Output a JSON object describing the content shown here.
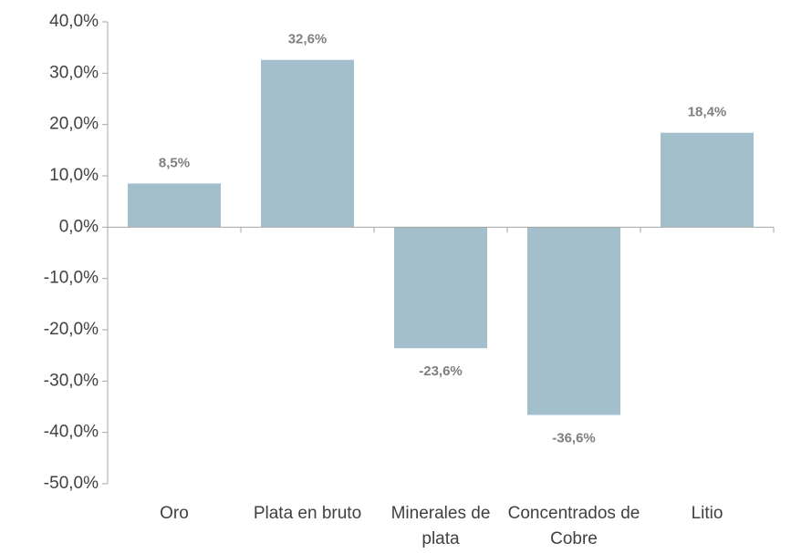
{
  "chart_data": {
    "type": "bar",
    "categories": [
      "Oro",
      "Plata en bruto",
      "Minerales de plata",
      "Concentrados de Cobre",
      "Litio"
    ],
    "values": [
      8.5,
      32.6,
      -23.6,
      -36.6,
      18.4
    ],
    "value_labels": [
      "8,5%",
      "32,6%",
      "-23,6%",
      "-36,6%",
      "18,4%"
    ],
    "color": "#a3bfcc",
    "ylim": [
      -50,
      40
    ],
    "yticks": [
      {
        "value": -50,
        "label": "-50,0%"
      },
      {
        "value": -40,
        "label": "-40,0%"
      },
      {
        "value": -30,
        "label": "-30,0%"
      },
      {
        "value": -20,
        "label": "-20,0%"
      },
      {
        "value": -10,
        "label": "-10,0%"
      },
      {
        "value": 0,
        "label": "0,0%"
      },
      {
        "value": 10,
        "label": "10,0%"
      },
      {
        "value": 20,
        "label": "20,0%"
      },
      {
        "value": 30,
        "label": "30,0%"
      },
      {
        "value": 40,
        "label": "40,0%"
      }
    ],
    "grid": false
  }
}
